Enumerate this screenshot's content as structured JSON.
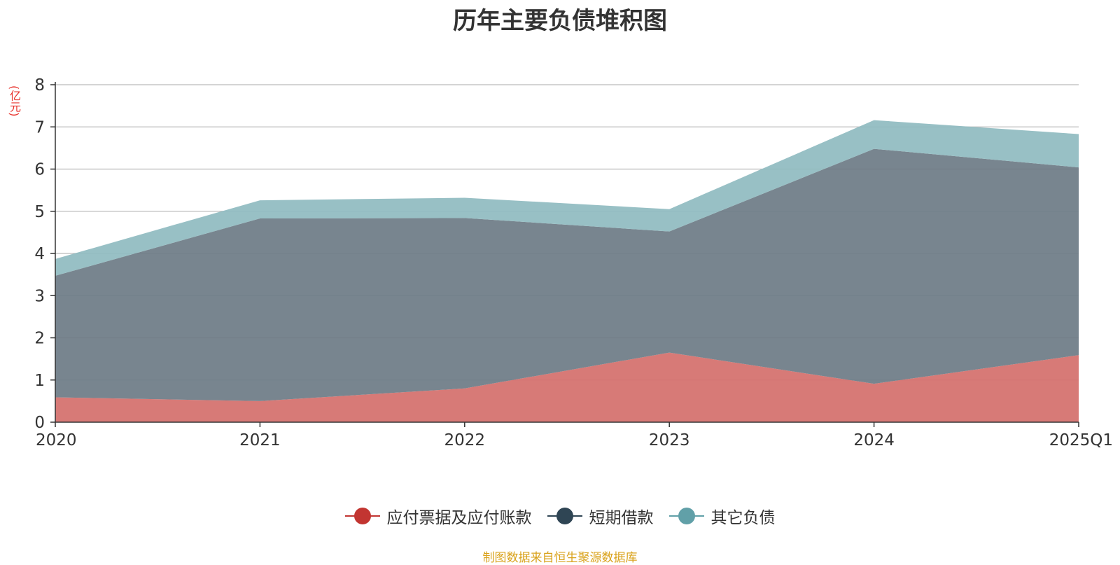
{
  "chart_data": {
    "type": "area",
    "stacked": true,
    "title": "历年主要负债堆积图",
    "y_unit": "(亿元)",
    "categories": [
      "2020",
      "2021",
      "2022",
      "2023",
      "2024",
      "2025Q1"
    ],
    "y_ticks": [
      "0",
      "1",
      "2",
      "3",
      "4",
      "5",
      "6",
      "7",
      "8"
    ],
    "ylim": [
      0,
      8
    ],
    "grid": true,
    "legend_position": "bottom",
    "series": [
      {
        "name": "应付票据及应付账款",
        "values": [
          0.59,
          0.5,
          0.8,
          1.65,
          0.91,
          1.59
        ],
        "color": "#c23531",
        "fill": "#d4706d"
      },
      {
        "name": "短期借款",
        "values": [
          2.88,
          4.33,
          4.04,
          2.87,
          5.57,
          4.45
        ],
        "color": "#2f4554",
        "fill": "#6e7c86"
      },
      {
        "name": "其它负债",
        "values": [
          0.4,
          0.43,
          0.48,
          0.53,
          0.68,
          0.79
        ],
        "color": "#61a0a8",
        "fill": "#90bbc1"
      }
    ]
  },
  "source_note": "制图数据来自恒生聚源数据库"
}
